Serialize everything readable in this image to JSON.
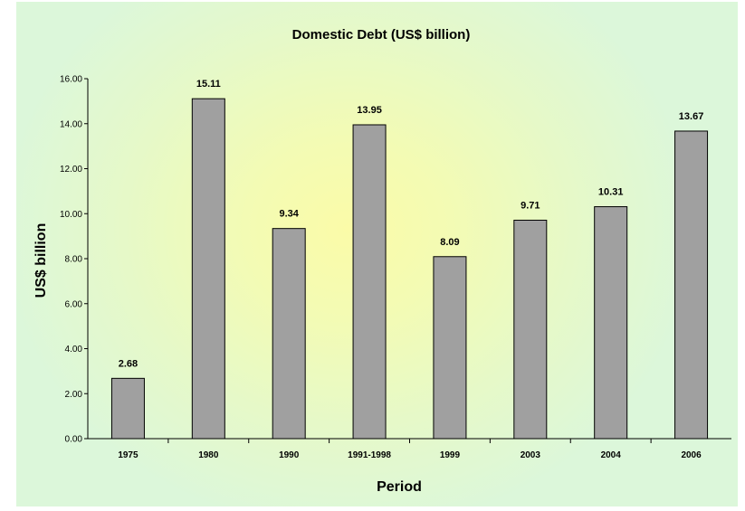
{
  "chart_data": {
    "type": "bar",
    "title": "Domestic Debt (US$ billion)",
    "xlabel": "Period",
    "ylabel": "US$ billion",
    "categories": [
      "1975",
      "1980",
      "1990",
      "1991-1998",
      "1999",
      "2003",
      "2004",
      "2006"
    ],
    "values": [
      2.68,
      15.11,
      9.34,
      13.95,
      8.09,
      9.71,
      10.31,
      13.67
    ],
    "data_labels": [
      "2.68",
      "15.11",
      "9.34",
      "13.95",
      "8.09",
      "9.71",
      "10.31",
      "13.67"
    ],
    "ylim": [
      0,
      16
    ],
    "yticks": [
      "0.00",
      "2.00",
      "4.00",
      "6.00",
      "8.00",
      "10.00",
      "12.00",
      "14.00",
      "16.00"
    ],
    "grid": false,
    "legend": "none",
    "bar_color": "#a0a0a0",
    "bar_edge_color": "#000000"
  }
}
